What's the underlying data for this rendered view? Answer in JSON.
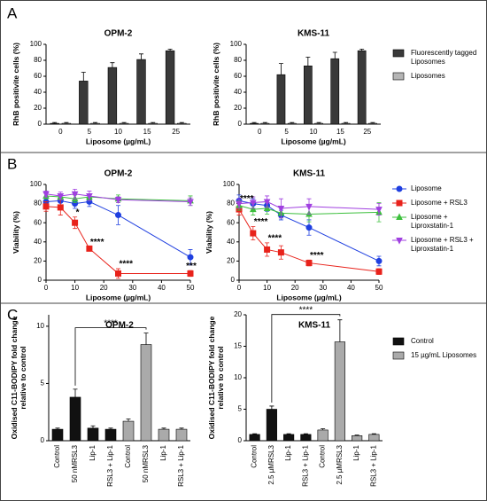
{
  "panel_labels": [
    "A",
    "B",
    "C"
  ],
  "chart_data": [
    {
      "type": "bar",
      "title": "OPM-2",
      "x_label": "Liposome (µg/mL)",
      "y_label": "RhB positivite cells (%)",
      "categories": [
        "0",
        "5",
        "10",
        "15",
        "25"
      ],
      "series": [
        {
          "color": "#3a3a3a",
          "values": [
            1,
            54,
            71,
            81,
            92
          ],
          "errors": [
            1,
            11,
            6,
            7,
            2
          ]
        },
        {
          "color": "#b5b5b5",
          "values": [
            1,
            1,
            1,
            1,
            1
          ],
          "errors": [
            1,
            1,
            1,
            1,
            1
          ]
        }
      ],
      "ylim": [
        0,
        100
      ],
      "yticks": [
        0,
        20,
        40,
        60,
        80,
        100
      ]
    },
    {
      "type": "bar",
      "title": "KMS-11",
      "x_label": "Liposome (µg/mL)",
      "y_label": "RhB positivite cells (%)",
      "categories": [
        "0",
        "5",
        "10",
        "15",
        "25"
      ],
      "series": [
        {
          "name": "Fluorescently tagged Liposomes",
          "color": "#3a3a3a",
          "values": [
            1,
            62,
            73,
            82,
            92
          ],
          "errors": [
            1,
            14,
            11,
            8,
            2
          ]
        },
        {
          "name": "Liposomes",
          "color": "#b5b5b5",
          "values": [
            1,
            1,
            1,
            1,
            1
          ],
          "errors": [
            1,
            1,
            1,
            1,
            1
          ]
        }
      ],
      "ylim": [
        0,
        100
      ],
      "yticks": [
        0,
        20,
        40,
        60,
        80,
        100
      ],
      "legend": true
    },
    {
      "type": "line",
      "title": "OPM-2",
      "x_label": "Liposome (µg/mL)",
      "y_label": "Viability (%)",
      "x": [
        0,
        5,
        10,
        15,
        25,
        50
      ],
      "series": [
        {
          "color": "#1f3fe0",
          "marker": "circle",
          "values": [
            82,
            83,
            80,
            82,
            68,
            24
          ],
          "errors": [
            5,
            5,
            5,
            5,
            10,
            8
          ]
        },
        {
          "color": "#e8221b",
          "marker": "square",
          "values": [
            77,
            76,
            60,
            33,
            7,
            7
          ],
          "errors": [
            5,
            8,
            6,
            2,
            5,
            3
          ]
        },
        {
          "color": "#3cbf3c",
          "marker": "triangle-up",
          "values": [
            88,
            87,
            85,
            87,
            85,
            83
          ],
          "errors": [
            3,
            3,
            4,
            3,
            4,
            5
          ]
        },
        {
          "color": "#a040e0",
          "marker": "triangle-down",
          "values": [
            90,
            88,
            90,
            88,
            84,
            82
          ],
          "errors": [
            3,
            4,
            5,
            5,
            3,
            4
          ]
        }
      ],
      "annotations": [
        {
          "text": "*",
          "x": 10
        },
        {
          "text": "****",
          "x": 15
        },
        {
          "text": "****",
          "x": 25
        },
        {
          "text": "***",
          "x": 50
        }
      ],
      "xlim": [
        0,
        50
      ],
      "xticks": [
        0,
        10,
        20,
        30,
        40,
        50
      ],
      "ylim": [
        0,
        100
      ],
      "yticks": [
        0,
        20,
        40,
        60,
        80,
        100
      ]
    },
    {
      "type": "line",
      "title": "KMS-11",
      "x_label": "Liposome (µg/mL)",
      "y_label": "Viability (%)",
      "x": [
        0,
        5,
        10,
        15,
        25,
        50
      ],
      "series": [
        {
          "name": "Liposome",
          "color": "#1f3fe0",
          "marker": "circle",
          "values": [
            83,
            80,
            78,
            68,
            55,
            20
          ],
          "errors": [
            6,
            5,
            6,
            5,
            8,
            5
          ]
        },
        {
          "name": "Liposome + RSL3",
          "color": "#e8221b",
          "marker": "square",
          "values": [
            74,
            49,
            32,
            29,
            18,
            9
          ],
          "errors": [
            6,
            7,
            7,
            7,
            3,
            3
          ]
        },
        {
          "name": "Liposome + Liproxstatin-1",
          "color": "#3cbf3c",
          "marker": "triangle-up",
          "values": [
            78,
            74,
            75,
            70,
            69,
            71
          ],
          "errors": [
            5,
            6,
            6,
            5,
            8,
            10
          ]
        },
        {
          "name": "Liposome + RSL3 + Liproxstatin-1",
          "color": "#a040e0",
          "marker": "triangle-down",
          "values": [
            80,
            81,
            82,
            75,
            77,
            74
          ],
          "errors": [
            5,
            6,
            6,
            10,
            8,
            6
          ]
        }
      ],
      "annotations": [
        {
          "text": "****",
          "x": 0
        },
        {
          "text": "****",
          "x": 5
        },
        {
          "text": "****",
          "x": 10
        },
        {
          "text": "****",
          "x": 25
        }
      ],
      "xlim": [
        0,
        50
      ],
      "xticks": [
        0,
        10,
        20,
        30,
        40,
        50
      ],
      "ylim": [
        0,
        100
      ],
      "yticks": [
        0,
        20,
        40,
        60,
        80,
        100
      ],
      "legend": true
    },
    {
      "type": "bar",
      "title": "OPM-2",
      "y_label": "Oxidised C11-BODIPY fold change relative to control",
      "categories": [
        "Control",
        "50 nMRSL3",
        "Lip-1",
        "RSL3 + Lip-1",
        "Control",
        "50 nMRSL3",
        "Lip-1",
        "RSL3 + Lip-1"
      ],
      "series": [
        {
          "color": "#111111",
          "values": [
            1,
            3.8,
            1.1,
            1,
            null,
            null,
            null,
            null
          ],
          "errors": [
            0.1,
            0.7,
            0.2,
            0.1,
            null,
            null,
            null,
            null
          ]
        },
        {
          "color": "#aaaaaa",
          "values": [
            null,
            null,
            null,
            null,
            1.7,
            8.4,
            1,
            1
          ],
          "errors": [
            null,
            null,
            null,
            null,
            0.2,
            1,
            0.1,
            0.1
          ]
        }
      ],
      "significance": "****",
      "ylim": [
        0,
        11
      ],
      "yticks": [
        0,
        5,
        10
      ]
    },
    {
      "type": "bar",
      "title": "KMS-11",
      "y_label": "Oxidised C11-BODIPY fold change relative to control",
      "categories": [
        "Control",
        "2.5 µMRSL3",
        "Lip-1",
        "RSL3 + Lip-1",
        "Control",
        "2.5 µMRSL3",
        "Lip-1",
        "RSL3 + Lip-1"
      ],
      "series": [
        {
          "name": "Control",
          "color": "#111111",
          "values": [
            1,
            5,
            1,
            1,
            null,
            null,
            null,
            null
          ],
          "errors": [
            0.1,
            0.5,
            0.1,
            0.1,
            null,
            null,
            null,
            null
          ]
        },
        {
          "name": "15 µg/mL Liposomes",
          "color": "#aaaaaa",
          "values": [
            null,
            null,
            null,
            null,
            1.7,
            15.7,
            0.8,
            1
          ],
          "errors": [
            null,
            null,
            null,
            null,
            0.2,
            3.5,
            0.1,
            0.1
          ]
        }
      ],
      "significance": "****",
      "ylim": [
        0,
        20
      ],
      "yticks": [
        0,
        5,
        10,
        15,
        20
      ],
      "legend": true
    }
  ]
}
